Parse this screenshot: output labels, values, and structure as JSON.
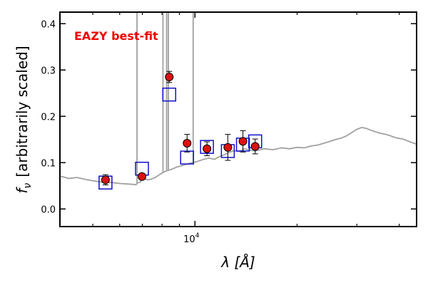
{
  "chart_data": {
    "type": "scatter",
    "annotation": "EAZY best-fit",
    "colors": {
      "annotation": "#ee0000",
      "observed": "#dd1111",
      "model": "#1111cc",
      "sed": "#a0a0a0"
    },
    "xscale": "log",
    "xlim": [
      4000,
      45000
    ],
    "ylim": [
      -0.038,
      0.425
    ],
    "xlabel_tex": "λ [Å]",
    "ylabel_text": "[arbitrarily scaled]",
    "ylabel_symbol": "f",
    "ylabel_sub": "ν",
    "xtick_major": {
      "value": 10000,
      "label_base": "10",
      "label_exp": "4"
    },
    "xtick_minor": [
      5000,
      6000,
      7000,
      8000,
      9000,
      20000,
      30000,
      40000
    ],
    "yticks": [
      {
        "value": 0.0,
        "label": "0.0"
      },
      {
        "value": 0.1,
        "label": "0.1"
      },
      {
        "value": 0.2,
        "label": "0.2"
      },
      {
        "value": 0.3,
        "label": "0.3"
      },
      {
        "value": 0.4,
        "label": "0.4"
      }
    ],
    "observed": [
      {
        "x": 5450,
        "y": 0.063,
        "err": 0.011
      },
      {
        "x": 6980,
        "y": 0.07,
        "err": 0.006
      },
      {
        "x": 8400,
        "y": 0.285,
        "err": 0.012
      },
      {
        "x": 9480,
        "y": 0.142,
        "err": 0.019
      },
      {
        "x": 10850,
        "y": 0.13,
        "err": 0.015
      },
      {
        "x": 12500,
        "y": 0.133,
        "err": 0.028
      },
      {
        "x": 13850,
        "y": 0.146,
        "err": 0.023
      },
      {
        "x": 15050,
        "y": 0.135,
        "err": 0.016
      }
    ],
    "model": [
      {
        "x": 5450,
        "y": 0.057
      },
      {
        "x": 6980,
        "y": 0.087
      },
      {
        "x": 8400,
        "y": 0.247
      },
      {
        "x": 9480,
        "y": 0.111
      },
      {
        "x": 10850,
        "y": 0.134
      },
      {
        "x": 12500,
        "y": 0.125
      },
      {
        "x": 13850,
        "y": 0.139
      },
      {
        "x": 15050,
        "y": 0.146
      }
    ],
    "sed_lines": [
      {
        "x": 6750,
        "y": 0.58
      },
      {
        "x": 8050,
        "y": 0.58
      },
      {
        "x": 8250,
        "y": 0.58
      },
      {
        "x": 8350,
        "y": 0.58
      },
      {
        "x": 9880,
        "y": 0.58
      }
    ],
    "sed": [
      [
        4000,
        0.071
      ],
      [
        4250,
        0.066
      ],
      [
        4500,
        0.068
      ],
      [
        4800,
        0.063
      ],
      [
        5100,
        0.06
      ],
      [
        5400,
        0.057
      ],
      [
        5700,
        0.057
      ],
      [
        6000,
        0.055
      ],
      [
        6300,
        0.054
      ],
      [
        6600,
        0.053
      ],
      [
        6700,
        0.052
      ],
      [
        6760,
        0.056
      ],
      [
        6900,
        0.058
      ],
      [
        7000,
        0.065
      ],
      [
        7300,
        0.063
      ],
      [
        7600,
        0.067
      ],
      [
        7900,
        0.075
      ],
      [
        8100,
        0.08
      ],
      [
        8300,
        0.083
      ],
      [
        8500,
        0.085
      ],
      [
        8800,
        0.09
      ],
      [
        9100,
        0.093
      ],
      [
        9400,
        0.096
      ],
      [
        9700,
        0.099
      ],
      [
        10000,
        0.101
      ],
      [
        10300,
        0.104
      ],
      [
        10600,
        0.107
      ],
      [
        11000,
        0.11
      ],
      [
        11400,
        0.107
      ],
      [
        11800,
        0.113
      ],
      [
        12200,
        0.117
      ],
      [
        12600,
        0.122
      ],
      [
        13000,
        0.126
      ],
      [
        13500,
        0.124
      ],
      [
        14000,
        0.13
      ],
      [
        15000,
        0.125
      ],
      [
        16000,
        0.13
      ],
      [
        17000,
        0.128
      ],
      [
        18000,
        0.132
      ],
      [
        19000,
        0.13
      ],
      [
        20000,
        0.133
      ],
      [
        21000,
        0.132
      ],
      [
        22000,
        0.136
      ],
      [
        23000,
        0.138
      ],
      [
        24000,
        0.142
      ],
      [
        25000,
        0.146
      ],
      [
        26000,
        0.15
      ],
      [
        27000,
        0.153
      ],
      [
        28000,
        0.158
      ],
      [
        29000,
        0.165
      ],
      [
        30000,
        0.172
      ],
      [
        31000,
        0.176
      ],
      [
        32000,
        0.174
      ],
      [
        33000,
        0.17
      ],
      [
        35000,
        0.164
      ],
      [
        37000,
        0.16
      ],
      [
        39000,
        0.154
      ],
      [
        41000,
        0.151
      ],
      [
        43000,
        0.145
      ],
      [
        45000,
        0.14
      ]
    ]
  }
}
